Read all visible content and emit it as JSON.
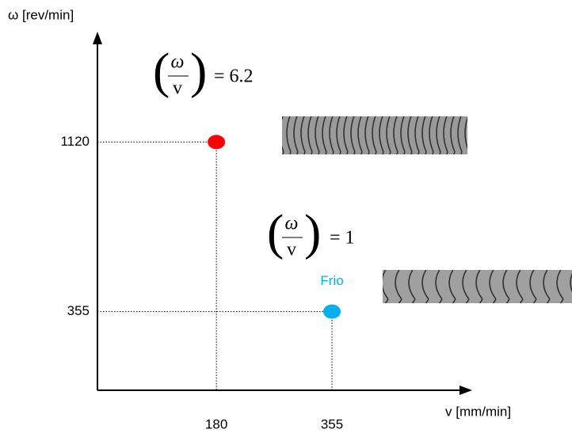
{
  "chart_data": {
    "type": "scatter",
    "x_label": "ω [rev/min]",
    "y_axis_label": "ω [rev/min]",
    "x_axis_label": "v [mm/min]",
    "x": [
      180,
      355
    ],
    "y": [
      1120,
      355
    ],
    "colors": [
      "#ff0000",
      "#00b0f0"
    ],
    "xlim": [
      0,
      560
    ],
    "ylim": [
      0,
      1600
    ],
    "xticks": [
      180,
      355
    ],
    "yticks": [
      1120,
      355
    ],
    "annotations": [
      {
        "numerator": "ω",
        "denominator": "v",
        "text": "= 6.2"
      },
      {
        "numerator": "ω",
        "denominator": "v",
        "text": "= 1"
      },
      {
        "text": "Frio"
      }
    ]
  }
}
